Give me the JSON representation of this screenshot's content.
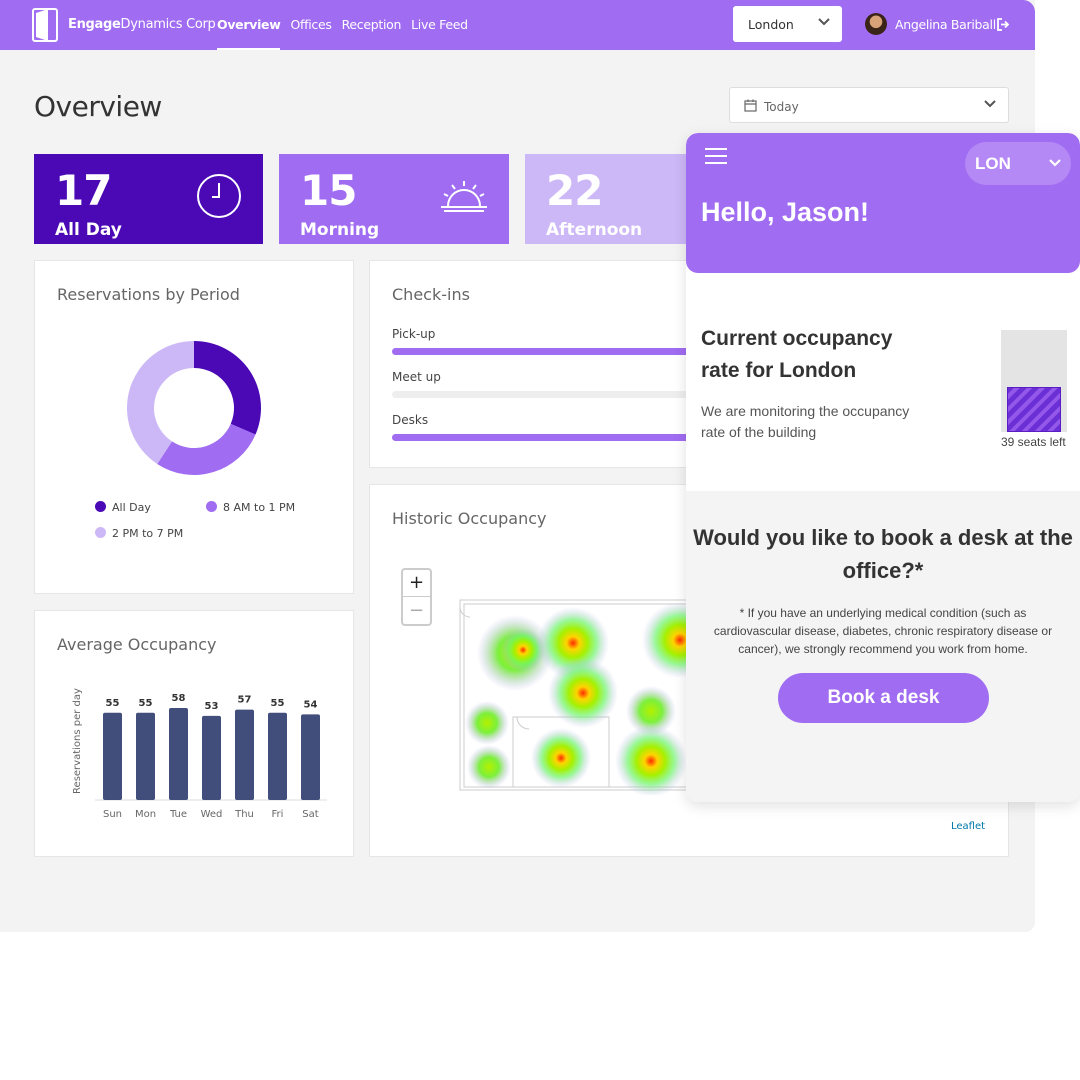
{
  "nav": {
    "brand_bold": "Engage",
    "brand_rest": "Dynamics Corp",
    "links": [
      "Overview",
      "Offices",
      "Reception",
      "Live Feed"
    ],
    "active": "Overview",
    "city": "London",
    "user_name": "Angelina Bariball"
  },
  "page": {
    "title": "Overview",
    "date_filter": "Today"
  },
  "stats": [
    {
      "value": "17",
      "label": "All Day",
      "color": "#4b09b6"
    },
    {
      "value": "15",
      "label": "Morning",
      "color": "#a06cf1"
    },
    {
      "value": "22",
      "label": "Afternoon",
      "color": "#cdb8f7"
    }
  ],
  "reservations": {
    "title": "Reservations by Period",
    "legend": [
      "All Day",
      "8 AM to 1 PM",
      "2 PM to 7 PM"
    ]
  },
  "checkins": {
    "title": "Check-ins",
    "items": [
      {
        "label": "Pick-up",
        "fraction": 1.0
      },
      {
        "label": "Meet up",
        "fraction": 0.0
      },
      {
        "label": "Desks",
        "fraction": 1.0
      }
    ]
  },
  "historic": {
    "title": "Historic Occupancy",
    "zoom_in": "+",
    "zoom_out": "−",
    "attribution": "Leaflet"
  },
  "chart_data": {
    "type": "bar",
    "title": "Average Occupancy",
    "ylabel": "Reservations per day",
    "xlabel": "",
    "categories": [
      "Sun",
      "Mon",
      "Tue",
      "Wed",
      "Thu",
      "Fri",
      "Sat"
    ],
    "values": [
      55,
      55,
      58,
      53,
      57,
      55,
      54
    ],
    "ylim": [
      0,
      58
    ],
    "bar_color": "#414d7a",
    "grid": false
  },
  "donut_data": {
    "type": "pie",
    "labels": [
      "All Day",
      "8 AM to 1 PM",
      "2 PM to 7 PM"
    ],
    "values": [
      17,
      15,
      22
    ],
    "colors": [
      "#4b09b6",
      "#a06cf1",
      "#cdb8f7"
    ]
  },
  "mobile": {
    "city_code": "LON",
    "greeting": "Hello, Jason!",
    "occupancy_title": "Current occupancy rate for London",
    "occupancy_text": "We are monitoring the occupancy rate of the building",
    "occupancy_fraction": 0.44,
    "seats_left": "39 seats left",
    "book_question": "Would you like to book a desk at the office?*",
    "book_note": "* If you have an underlying medical condition (such as cardiovascular disease, diabetes, chronic respiratory disease or cancer), we strongly recommend you work from home.",
    "book_button": "Book a desk"
  }
}
